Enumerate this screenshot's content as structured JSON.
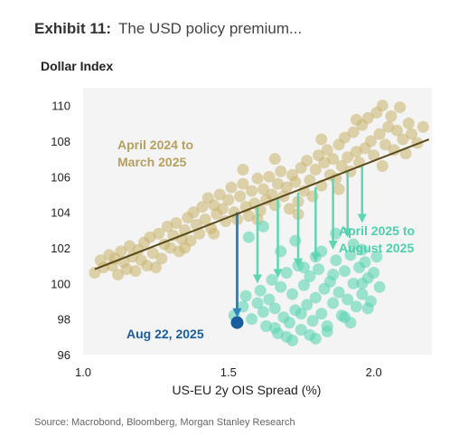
{
  "header": {
    "exhibit": "Exhibit 11:",
    "subtitle": "The USD policy premium..."
  },
  "source": "Source: Macrobond, Bloomberg, Morgan Stanley Research",
  "chart_data": {
    "type": "scatter",
    "title": "",
    "ylabel": "Dollar Index",
    "xlabel": "US-EU 2y OIS Spread (%)",
    "xlim": [
      1.0,
      2.2
    ],
    "ylim": [
      96,
      111
    ],
    "xticks": [
      1.0,
      1.5,
      2.0
    ],
    "xtick_labels": [
      "1.0",
      "1.5",
      "2.0"
    ],
    "yticks": [
      96,
      98,
      100,
      102,
      104,
      106,
      108,
      110
    ],
    "ytick_labels": [
      "96",
      "98",
      "100",
      "102",
      "104",
      "106",
      "108",
      "110"
    ],
    "grid": false,
    "colors": {
      "period1": "#C9B36B",
      "period2": "#5ED6B4",
      "trend": "#5A4A1A",
      "marker": "#1A5E9E",
      "plot_bg": "#F4F4F4"
    },
    "series": [
      {
        "label": "April 2024 to March 2025",
        "label_lines": [
          "April 2024 to",
          "March 2025"
        ],
        "points": [
          [
            1.04,
            100.6
          ],
          [
            1.06,
            101.3
          ],
          [
            1.07,
            100.9
          ],
          [
            1.09,
            101.6
          ],
          [
            1.1,
            101.0
          ],
          [
            1.11,
            101.4
          ],
          [
            1.12,
            100.5
          ],
          [
            1.13,
            101.8
          ],
          [
            1.14,
            101.2
          ],
          [
            1.15,
            100.8
          ],
          [
            1.16,
            102.1
          ],
          [
            1.17,
            101.5
          ],
          [
            1.18,
            100.7
          ],
          [
            1.19,
            101.9
          ],
          [
            1.2,
            101.3
          ],
          [
            1.21,
            102.3
          ],
          [
            1.22,
            101.0
          ],
          [
            1.23,
            102.6
          ],
          [
            1.24,
            101.7
          ],
          [
            1.25,
            100.9
          ],
          [
            1.26,
            102.8
          ],
          [
            1.27,
            101.4
          ],
          [
            1.28,
            102.2
          ],
          [
            1.29,
            103.2
          ],
          [
            1.3,
            102.0
          ],
          [
            1.31,
            102.7
          ],
          [
            1.32,
            103.4
          ],
          [
            1.33,
            101.8
          ],
          [
            1.34,
            102.5
          ],
          [
            1.35,
            103.0
          ],
          [
            1.36,
            103.7
          ],
          [
            1.37,
            102.4
          ],
          [
            1.38,
            104.0
          ],
          [
            1.39,
            103.3
          ],
          [
            1.4,
            102.8
          ],
          [
            1.41,
            104.3
          ],
          [
            1.42,
            103.6
          ],
          [
            1.43,
            104.8
          ],
          [
            1.44,
            103.1
          ],
          [
            1.45,
            104.4
          ],
          [
            1.46,
            103.9
          ],
          [
            1.47,
            105.0
          ],
          [
            1.48,
            104.2
          ],
          [
            1.49,
            103.5
          ],
          [
            1.5,
            104.7
          ],
          [
            1.51,
            105.4
          ],
          [
            1.52,
            104.0
          ],
          [
            1.53,
            103.6
          ],
          [
            1.54,
            104.9
          ],
          [
            1.55,
            105.6
          ],
          [
            1.56,
            104.3
          ],
          [
            1.57,
            103.8
          ],
          [
            1.58,
            105.2
          ],
          [
            1.59,
            104.5
          ],
          [
            1.6,
            105.9
          ],
          [
            1.61,
            104.1
          ],
          [
            1.62,
            105.3
          ],
          [
            1.63,
            104.7
          ],
          [
            1.64,
            106.0
          ],
          [
            1.65,
            105.0
          ],
          [
            1.66,
            104.4
          ],
          [
            1.67,
            105.6
          ],
          [
            1.68,
            106.3
          ],
          [
            1.69,
            104.9
          ],
          [
            1.7,
            105.4
          ],
          [
            1.71,
            104.2
          ],
          [
            1.72,
            106.1
          ],
          [
            1.73,
            105.7
          ],
          [
            1.74,
            104.6
          ],
          [
            1.75,
            106.5
          ],
          [
            1.76,
            105.2
          ],
          [
            1.77,
            106.9
          ],
          [
            1.78,
            105.8
          ],
          [
            1.79,
            104.9
          ],
          [
            1.8,
            106.4
          ],
          [
            1.81,
            107.2
          ],
          [
            1.82,
            105.5
          ],
          [
            1.83,
            106.8
          ],
          [
            1.84,
            107.5
          ],
          [
            1.85,
            106.1
          ],
          [
            1.86,
            107.0
          ],
          [
            1.87,
            105.9
          ],
          [
            1.88,
            107.8
          ],
          [
            1.89,
            106.6
          ],
          [
            1.9,
            108.2
          ],
          [
            1.91,
            107.1
          ],
          [
            1.92,
            106.3
          ],
          [
            1.93,
            108.5
          ],
          [
            1.94,
            107.4
          ],
          [
            1.95,
            106.8
          ],
          [
            1.96,
            108.9
          ],
          [
            1.97,
            107.6
          ],
          [
            1.98,
            109.3
          ],
          [
            1.99,
            108.0
          ],
          [
            2.0,
            107.2
          ],
          [
            2.01,
            109.6
          ],
          [
            2.02,
            108.4
          ],
          [
            2.03,
            110.0
          ],
          [
            2.04,
            107.8
          ],
          [
            2.05,
            108.8
          ],
          [
            2.06,
            109.4
          ],
          [
            2.07,
            107.5
          ],
          [
            2.08,
            108.6
          ],
          [
            2.09,
            109.9
          ],
          [
            2.1,
            108.1
          ],
          [
            2.11,
            107.3
          ],
          [
            2.12,
            109.0
          ],
          [
            2.13,
            108.4
          ],
          [
            2.15,
            107.9
          ],
          [
            2.17,
            108.8
          ],
          [
            1.35,
            102.0
          ],
          [
            1.55,
            106.4
          ],
          [
            1.6,
            103.6
          ],
          [
            1.74,
            103.9
          ],
          [
            1.82,
            108.1
          ],
          [
            1.94,
            109.2
          ],
          [
            2.03,
            106.6
          ],
          [
            1.45,
            102.8
          ],
          [
            1.66,
            107.0
          ],
          [
            1.88,
            105.3
          ]
        ]
      },
      {
        "label": "April 2025 to August 2025",
        "label_lines": [
          "April 2025 to",
          "August 2025"
        ],
        "points": [
          [
            1.52,
            98.2
          ],
          [
            1.55,
            98.7
          ],
          [
            1.56,
            99.3
          ],
          [
            1.58,
            98.0
          ],
          [
            1.6,
            98.9
          ],
          [
            1.61,
            99.6
          ],
          [
            1.62,
            98.4
          ],
          [
            1.63,
            97.6
          ],
          [
            1.64,
            99.1
          ],
          [
            1.65,
            100.2
          ],
          [
            1.66,
            98.6
          ],
          [
            1.67,
            97.2
          ],
          [
            1.68,
            99.8
          ],
          [
            1.69,
            98.1
          ],
          [
            1.7,
            100.6
          ],
          [
            1.71,
            97.8
          ],
          [
            1.72,
            99.4
          ],
          [
            1.73,
            98.5
          ],
          [
            1.74,
            101.0
          ],
          [
            1.75,
            97.4
          ],
          [
            1.76,
            99.9
          ],
          [
            1.77,
            98.8
          ],
          [
            1.78,
            100.4
          ],
          [
            1.79,
            97.9
          ],
          [
            1.8,
            99.2
          ],
          [
            1.81,
            100.8
          ],
          [
            1.82,
            98.3
          ],
          [
            1.83,
            99.7
          ],
          [
            1.84,
            97.6
          ],
          [
            1.85,
            100.1
          ],
          [
            1.86,
            98.9
          ],
          [
            1.87,
            101.3
          ],
          [
            1.88,
            99.5
          ],
          [
            1.89,
            98.2
          ],
          [
            1.9,
            100.7
          ],
          [
            1.91,
            99.1
          ],
          [
            1.92,
            101.6
          ],
          [
            1.93,
            100.0
          ],
          [
            1.94,
            98.7
          ],
          [
            1.95,
            100.9
          ],
          [
            1.96,
            99.4
          ],
          [
            1.97,
            101.2
          ],
          [
            1.98,
            100.3
          ],
          [
            1.99,
            99.0
          ],
          [
            2.0,
            100.6
          ],
          [
            2.01,
            101.5
          ],
          [
            2.02,
            99.8
          ],
          [
            1.57,
            102.6
          ],
          [
            1.62,
            103.2
          ],
          [
            1.68,
            101.8
          ],
          [
            1.73,
            102.4
          ],
          [
            1.8,
            101.5
          ],
          [
            1.87,
            102.8
          ],
          [
            1.93,
            102.2
          ],
          [
            1.96,
            101.9
          ],
          [
            1.78,
            97.1
          ],
          [
            1.7,
            97.0
          ],
          [
            1.84,
            97.3
          ],
          [
            1.9,
            98.1
          ],
          [
            1.75,
            98.3
          ],
          [
            1.66,
            97.5
          ],
          [
            1.96,
            100.0
          ],
          [
            1.86,
            100.5
          ],
          [
            1.82,
            101.8
          ],
          [
            1.76,
            100.9
          ],
          [
            1.98,
            98.6
          ],
          [
            1.92,
            97.8
          ],
          [
            1.8,
            96.9
          ],
          [
            1.72,
            96.8
          ]
        ]
      }
    ],
    "trend_line": [
      [
        1.04,
        100.8
      ],
      [
        2.19,
        108.1
      ]
    ],
    "arrows": [
      {
        "x": 1.53,
        "from": 104.0,
        "to": 98.1,
        "color": "#2E86C1"
      },
      {
        "x": 1.6,
        "from": 104.4,
        "to": 100.0,
        "color": "#5ED6B4"
      },
      {
        "x": 1.67,
        "from": 104.8,
        "to": 100.3,
        "color": "#5ED6B4"
      },
      {
        "x": 1.74,
        "from": 105.1,
        "to": 100.9,
        "color": "#5ED6B4"
      },
      {
        "x": 1.8,
        "from": 105.4,
        "to": 101.2,
        "color": "#5ED6B4"
      },
      {
        "x": 1.86,
        "from": 105.9,
        "to": 101.9,
        "color": "#5ED6B4"
      },
      {
        "x": 1.91,
        "from": 106.3,
        "to": 102.6,
        "color": "#5ED6B4"
      },
      {
        "x": 1.96,
        "from": 106.6,
        "to": 103.4,
        "color": "#5ED6B4"
      }
    ],
    "highlight_point": {
      "label": "Aug 22, 2025",
      "x": 1.53,
      "y": 97.8
    }
  }
}
